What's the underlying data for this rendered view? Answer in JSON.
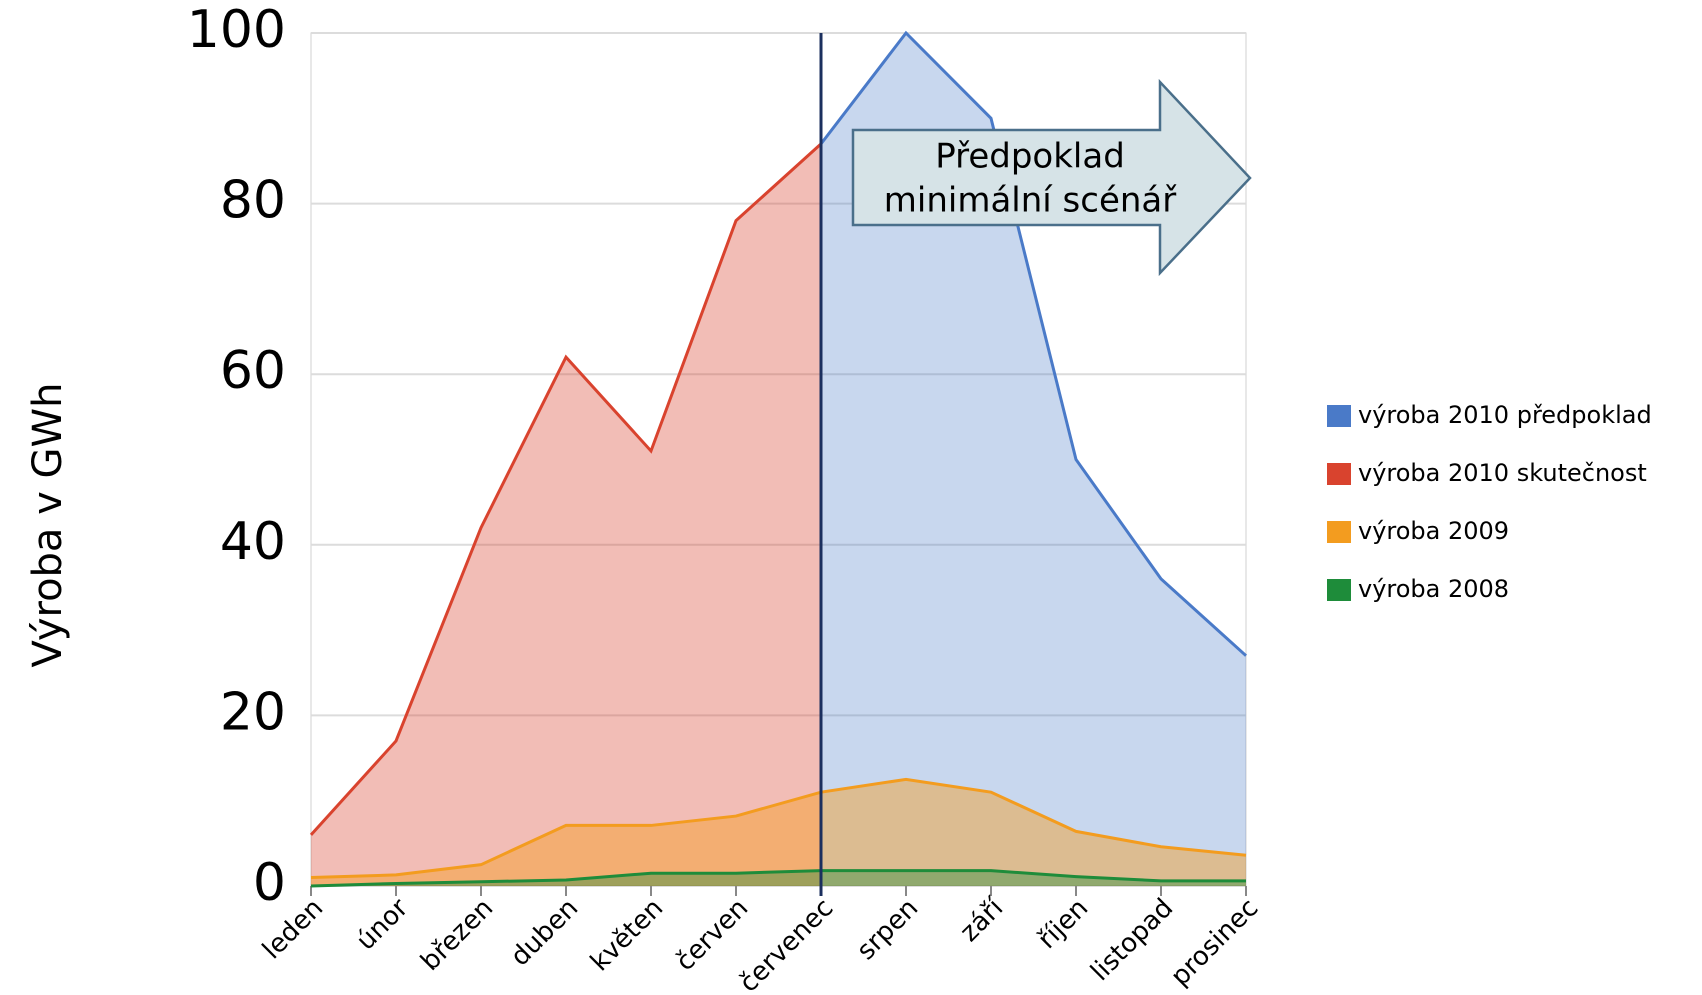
{
  "chart_data": {
    "type": "area",
    "y_label": "Výroba v GWh",
    "categories": [
      "leden",
      "únor",
      "březen",
      "duben",
      "květen",
      "červen",
      "červenec",
      "srpen",
      "září",
      "říjen",
      "listopad",
      "prosinec"
    ],
    "series": [
      {
        "name": "výroba 2010 předpoklad",
        "color": "#4a7ac8",
        "values": [
          null,
          null,
          null,
          null,
          null,
          null,
          87,
          100,
          90,
          50,
          36,
          27
        ]
      },
      {
        "name": "výroba 2010 skutečnost",
        "color": "#d9432e",
        "values": [
          6,
          17,
          42,
          62,
          51,
          78,
          87,
          null,
          null,
          null,
          null,
          null
        ]
      },
      {
        "name": "výroba 2009",
        "color": "#f39c1f",
        "values": [
          1,
          1.3,
          2.5,
          7.1,
          7.1,
          8.2,
          11,
          12.5,
          11,
          6.4,
          4.6,
          3.6
        ]
      },
      {
        "name": "výroba 2008",
        "color": "#1e8c3a",
        "values": [
          0,
          0.3,
          0.5,
          0.7,
          1.5,
          1.5,
          1.8,
          1.8,
          1.8,
          1.1,
          0.6,
          0.6
        ]
      }
    ],
    "ylim": [
      0,
      100
    ],
    "yticks": [
      0,
      20,
      40,
      60,
      80,
      100
    ],
    "grid": true,
    "legend": "right",
    "annotation": [
      "Předpoklad",
      "minimální scénář"
    ]
  }
}
